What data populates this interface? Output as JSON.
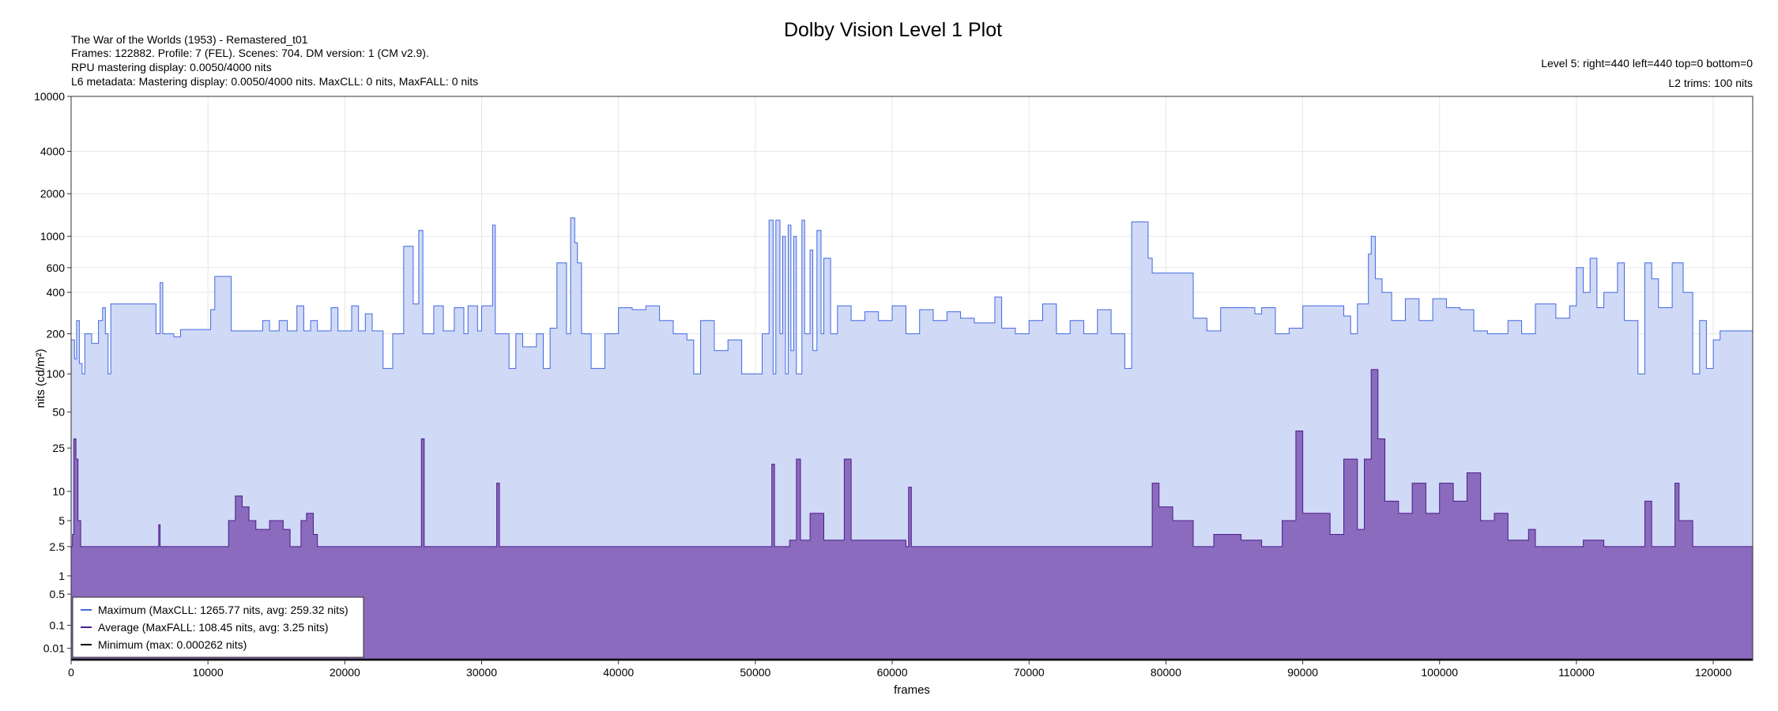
{
  "chart_data": {
    "type": "area",
    "title": "Dolby Vision Level 1 Plot",
    "info_left": [
      "The War of the Worlds (1953) - Remastered_t01",
      "Frames: 122882. Profile: 7 (FEL). Scenes: 704. DM version: 1 (CM v2.9).",
      "RPU mastering display: 0.0050/4000 nits",
      "L6 metadata: Mastering display: 0.0050/4000 nits. MaxCLL: 0 nits, MaxFALL: 0 nits"
    ],
    "info_right": [
      "Level 5: right=440 left=440 top=0 bottom=0",
      "L2 trims: 100 nits"
    ],
    "xlabel": "frames",
    "ylabel": "nits (cd/m²)",
    "xlim": [
      0,
      122882
    ],
    "y_scale": "pq",
    "ylim": [
      0,
      10000
    ],
    "x_ticks": [
      0,
      10000,
      20000,
      30000,
      40000,
      50000,
      60000,
      70000,
      80000,
      90000,
      100000,
      110000,
      120000
    ],
    "y_ticks": [
      0.01,
      0.1,
      0.5,
      1,
      2.5,
      5,
      10,
      25,
      50,
      100,
      200,
      400,
      600,
      1000,
      2000,
      4000,
      10000
    ],
    "grid": true,
    "legend_position": "bottom-left",
    "series": [
      {
        "name": "Maximum (MaxCLL: 1265.77 nits, avg: 259.32 nits)",
        "color": "#4169e1",
        "fill": "#d0d9f6",
        "points": [
          [
            0,
            180
          ],
          [
            250,
            130
          ],
          [
            400,
            250
          ],
          [
            600,
            120
          ],
          [
            800,
            100
          ],
          [
            1000,
            200
          ],
          [
            1500,
            170
          ],
          [
            2000,
            250
          ],
          [
            2300,
            310
          ],
          [
            2500,
            200
          ],
          [
            2700,
            100
          ],
          [
            2900,
            330
          ],
          [
            6000,
            330
          ],
          [
            6200,
            200
          ],
          [
            6500,
            470
          ],
          [
            6700,
            200
          ],
          [
            7500,
            190
          ],
          [
            8000,
            215
          ],
          [
            10000,
            215
          ],
          [
            10200,
            300
          ],
          [
            10500,
            520
          ],
          [
            11500,
            520
          ],
          [
            11700,
            210
          ],
          [
            13500,
            210
          ],
          [
            14000,
            250
          ],
          [
            14500,
            210
          ],
          [
            15200,
            250
          ],
          [
            15800,
            210
          ],
          [
            16500,
            320
          ],
          [
            17000,
            210
          ],
          [
            17500,
            250
          ],
          [
            18000,
            210
          ],
          [
            19000,
            310
          ],
          [
            19500,
            210
          ],
          [
            20500,
            320
          ],
          [
            21000,
            210
          ],
          [
            21500,
            280
          ],
          [
            22000,
            210
          ],
          [
            22800,
            110
          ],
          [
            23500,
            200
          ],
          [
            24300,
            850
          ],
          [
            25000,
            330
          ],
          [
            25400,
            1100
          ],
          [
            25700,
            200
          ],
          [
            26500,
            320
          ],
          [
            27200,
            210
          ],
          [
            28000,
            310
          ],
          [
            28700,
            200
          ],
          [
            29000,
            320
          ],
          [
            29700,
            210
          ],
          [
            30000,
            320
          ],
          [
            30800,
            1200
          ],
          [
            31000,
            200
          ],
          [
            32000,
            110
          ],
          [
            32500,
            200
          ],
          [
            33000,
            160
          ],
          [
            34000,
            200
          ],
          [
            34500,
            110
          ],
          [
            35000,
            220
          ],
          [
            35500,
            650
          ],
          [
            36200,
            200
          ],
          [
            36500,
            1350
          ],
          [
            36800,
            900
          ],
          [
            37000,
            650
          ],
          [
            37300,
            200
          ],
          [
            38000,
            110
          ],
          [
            39000,
            200
          ],
          [
            40000,
            310
          ],
          [
            41000,
            300
          ],
          [
            42000,
            320
          ],
          [
            43000,
            250
          ],
          [
            44000,
            200
          ],
          [
            45000,
            180
          ],
          [
            45500,
            100
          ],
          [
            46000,
            250
          ],
          [
            47000,
            150
          ],
          [
            48000,
            180
          ],
          [
            49000,
            100
          ],
          [
            50000,
            100
          ],
          [
            50500,
            200
          ],
          [
            51000,
            1300
          ],
          [
            51300,
            100
          ],
          [
            51500,
            1300
          ],
          [
            51800,
            200
          ],
          [
            52000,
            1000
          ],
          [
            52200,
            100
          ],
          [
            52400,
            1200
          ],
          [
            52600,
            150
          ],
          [
            52800,
            1000
          ],
          [
            53000,
            100
          ],
          [
            53400,
            1300
          ],
          [
            53600,
            200
          ],
          [
            54000,
            800
          ],
          [
            54200,
            150
          ],
          [
            54500,
            1100
          ],
          [
            54800,
            200
          ],
          [
            55000,
            700
          ],
          [
            55500,
            200
          ],
          [
            56000,
            320
          ],
          [
            57000,
            250
          ],
          [
            58000,
            290
          ],
          [
            59000,
            250
          ],
          [
            60000,
            320
          ],
          [
            61000,
            200
          ],
          [
            62000,
            300
          ],
          [
            63000,
            250
          ],
          [
            64000,
            290
          ],
          [
            65000,
            260
          ],
          [
            66000,
            240
          ],
          [
            67500,
            370
          ],
          [
            68000,
            220
          ],
          [
            69000,
            200
          ],
          [
            70000,
            250
          ],
          [
            71000,
            330
          ],
          [
            72000,
            200
          ],
          [
            73000,
            250
          ],
          [
            74000,
            200
          ],
          [
            75000,
            300
          ],
          [
            76000,
            200
          ],
          [
            77000,
            110
          ],
          [
            77500,
            1265
          ],
          [
            78700,
            700
          ],
          [
            79000,
            550
          ],
          [
            81500,
            550
          ],
          [
            82000,
            260
          ],
          [
            83000,
            210
          ],
          [
            84000,
            310
          ],
          [
            86500,
            280
          ],
          [
            87000,
            310
          ],
          [
            88000,
            200
          ],
          [
            89000,
            220
          ],
          [
            90000,
            320
          ],
          [
            93000,
            270
          ],
          [
            93500,
            200
          ],
          [
            94000,
            330
          ],
          [
            94800,
            750
          ],
          [
            95000,
            1000
          ],
          [
            95300,
            500
          ],
          [
            95800,
            400
          ],
          [
            96500,
            250
          ],
          [
            97500,
            360
          ],
          [
            98500,
            250
          ],
          [
            99500,
            360
          ],
          [
            100500,
            310
          ],
          [
            101500,
            300
          ],
          [
            102500,
            210
          ],
          [
            103500,
            200
          ],
          [
            105000,
            250
          ],
          [
            106000,
            200
          ],
          [
            107000,
            330
          ],
          [
            108500,
            260
          ],
          [
            109500,
            320
          ],
          [
            110000,
            600
          ],
          [
            110500,
            400
          ],
          [
            111000,
            700
          ],
          [
            111500,
            310
          ],
          [
            112000,
            400
          ],
          [
            113000,
            650
          ],
          [
            113500,
            250
          ],
          [
            114500,
            100
          ],
          [
            115000,
            650
          ],
          [
            115500,
            500
          ],
          [
            116000,
            310
          ],
          [
            117000,
            650
          ],
          [
            117800,
            400
          ],
          [
            118500,
            100
          ],
          [
            119000,
            250
          ],
          [
            119500,
            110
          ],
          [
            120000,
            180
          ],
          [
            120500,
            210
          ],
          [
            122500,
            210
          ],
          [
            122882,
            100
          ]
        ]
      },
      {
        "name": "Average (MaxFALL: 108.45 nits, avg: 3.25 nits)",
        "color": "#4b1c89",
        "fill": "#8b6bbd",
        "points": [
          [
            0,
            2.5
          ],
          [
            100,
            3.5
          ],
          [
            200,
            30
          ],
          [
            350,
            20
          ],
          [
            500,
            5
          ],
          [
            700,
            2.5
          ],
          [
            6300,
            2.5
          ],
          [
            6400,
            4.5
          ],
          [
            6500,
            2.5
          ],
          [
            11200,
            2.5
          ],
          [
            11500,
            5
          ],
          [
            12000,
            9
          ],
          [
            12500,
            7
          ],
          [
            13000,
            5
          ],
          [
            13500,
            4
          ],
          [
            14500,
            5
          ],
          [
            15500,
            4
          ],
          [
            16000,
            2.5
          ],
          [
            16800,
            5
          ],
          [
            17200,
            6
          ],
          [
            17700,
            3.5
          ],
          [
            18000,
            2.5
          ],
          [
            25500,
            2.5
          ],
          [
            25600,
            30
          ],
          [
            25800,
            2.5
          ],
          [
            31000,
            2.5
          ],
          [
            31100,
            12
          ],
          [
            31300,
            2.5
          ],
          [
            51000,
            2.5
          ],
          [
            51200,
            18
          ],
          [
            51400,
            2.5
          ],
          [
            52500,
            3
          ],
          [
            53000,
            20
          ],
          [
            53300,
            3
          ],
          [
            54000,
            6
          ],
          [
            55000,
            3
          ],
          [
            56500,
            20
          ],
          [
            57000,
            3
          ],
          [
            61000,
            2.5
          ],
          [
            61200,
            11
          ],
          [
            61400,
            2.5
          ],
          [
            78500,
            2.5
          ],
          [
            79000,
            12
          ],
          [
            79500,
            7
          ],
          [
            80500,
            5
          ],
          [
            82000,
            2.5
          ],
          [
            83500,
            3.5
          ],
          [
            85500,
            3
          ],
          [
            87000,
            2.5
          ],
          [
            88500,
            5
          ],
          [
            89500,
            35
          ],
          [
            90000,
            6
          ],
          [
            92000,
            3.5
          ],
          [
            93000,
            20
          ],
          [
            94000,
            4
          ],
          [
            94500,
            20
          ],
          [
            95000,
            108
          ],
          [
            95500,
            30
          ],
          [
            96000,
            8
          ],
          [
            97000,
            6
          ],
          [
            98000,
            12
          ],
          [
            99000,
            6
          ],
          [
            100000,
            12
          ],
          [
            101000,
            8
          ],
          [
            102000,
            15
          ],
          [
            103000,
            5
          ],
          [
            104000,
            6
          ],
          [
            105000,
            3
          ],
          [
            106500,
            4
          ],
          [
            107000,
            2.5
          ],
          [
            110000,
            2.5
          ],
          [
            110500,
            3
          ],
          [
            112000,
            2.5
          ],
          [
            114500,
            2.5
          ],
          [
            115000,
            8
          ],
          [
            115500,
            2.5
          ],
          [
            117000,
            2.5
          ],
          [
            117200,
            12
          ],
          [
            117500,
            5
          ],
          [
            118500,
            2.5
          ],
          [
            122882,
            2.5
          ]
        ]
      },
      {
        "name": "Minimum (max: 0.000262 nits)",
        "color": "#000000",
        "fill": "none",
        "points": [
          [
            0,
            0.0001
          ],
          [
            122882,
            0.0001
          ]
        ]
      }
    ]
  }
}
